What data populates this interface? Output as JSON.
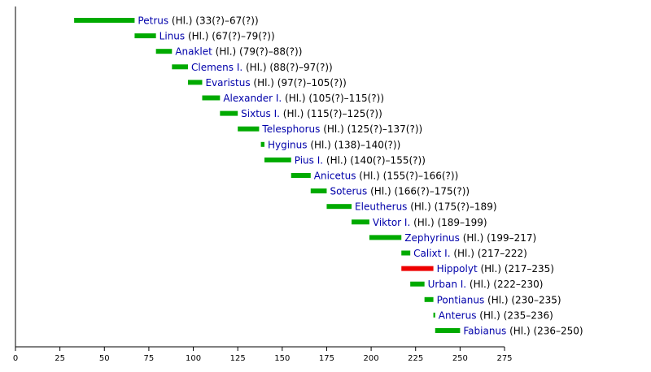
{
  "chart_data": {
    "type": "bar",
    "orientation": "horizontal-timeline",
    "title": "",
    "xlabel": "",
    "ylabel": "",
    "xlim": [
      0,
      275
    ],
    "xticks": [
      0,
      25,
      50,
      75,
      100,
      125,
      150,
      175,
      200,
      225,
      250,
      275
    ],
    "grid": false,
    "legend": "none",
    "colors": {
      "default": "#00aa00",
      "highlight": "#ee0000",
      "name_text": "#0000aa",
      "axis": "#000000"
    },
    "entries": [
      {
        "name": "Petrus",
        "rest": "(Hl.) (33(?)–67(?))",
        "start": 33,
        "end": 67,
        "highlight": false
      },
      {
        "name": "Linus",
        "rest": "(Hl.) (67(?)–79(?))",
        "start": 67,
        "end": 79,
        "highlight": false
      },
      {
        "name": "Anaklet",
        "rest": "(Hl.) (79(?)–88(?))",
        "start": 79,
        "end": 88,
        "highlight": false
      },
      {
        "name": "Clemens I.",
        "rest": "(Hl.) (88(?)–97(?))",
        "start": 88,
        "end": 97,
        "highlight": false
      },
      {
        "name": "Evaristus",
        "rest": "(Hl.) (97(?)–105(?))",
        "start": 97,
        "end": 105,
        "highlight": false
      },
      {
        "name": "Alexander I.",
        "rest": "(Hl.) (105(?)–115(?))",
        "start": 105,
        "end": 115,
        "highlight": false
      },
      {
        "name": "Sixtus I.",
        "rest": "(Hl.) (115(?)–125(?))",
        "start": 115,
        "end": 125,
        "highlight": false
      },
      {
        "name": "Telesphorus",
        "rest": "(Hl.) (125(?)–137(?))",
        "start": 125,
        "end": 137,
        "highlight": false
      },
      {
        "name": "Hyginus",
        "rest": "(Hl.) (138)–140(?))",
        "start": 138,
        "end": 140,
        "highlight": false
      },
      {
        "name": "Pius I.",
        "rest": "(Hl.) (140(?)–155(?))",
        "start": 140,
        "end": 155,
        "highlight": false
      },
      {
        "name": "Anicetus",
        "rest": "(Hl.) (155(?)–166(?))",
        "start": 155,
        "end": 166,
        "highlight": false
      },
      {
        "name": "Soterus",
        "rest": "(Hl.) (166(?)–175(?))",
        "start": 166,
        "end": 175,
        "highlight": false
      },
      {
        "name": "Eleutherus",
        "rest": "(Hl.) (175(?)–189)",
        "start": 175,
        "end": 189,
        "highlight": false
      },
      {
        "name": "Viktor I.",
        "rest": "(Hl.) (189–199)",
        "start": 189,
        "end": 199,
        "highlight": false
      },
      {
        "name": "Zephyrinus",
        "rest": "(Hl.) (199–217)",
        "start": 199,
        "end": 217,
        "highlight": false
      },
      {
        "name": "Calixt I.",
        "rest": "(Hl.) (217–222)",
        "start": 217,
        "end": 222,
        "highlight": false
      },
      {
        "name": "Hippolyt",
        "rest": "(Hl.) (217–235)",
        "start": 217,
        "end": 235,
        "highlight": true
      },
      {
        "name": "Urban I.",
        "rest": "(Hl.) (222–230)",
        "start": 222,
        "end": 230,
        "highlight": false
      },
      {
        "name": "Pontianus",
        "rest": "(Hl.) (230–235)",
        "start": 230,
        "end": 235,
        "highlight": false
      },
      {
        "name": "Anterus",
        "rest": "(Hl.) (235–236)",
        "start": 235,
        "end": 236,
        "highlight": false
      },
      {
        "name": "Fabianus",
        "rest": "(Hl.) (236–250)",
        "start": 236,
        "end": 250,
        "highlight": false
      }
    ]
  }
}
